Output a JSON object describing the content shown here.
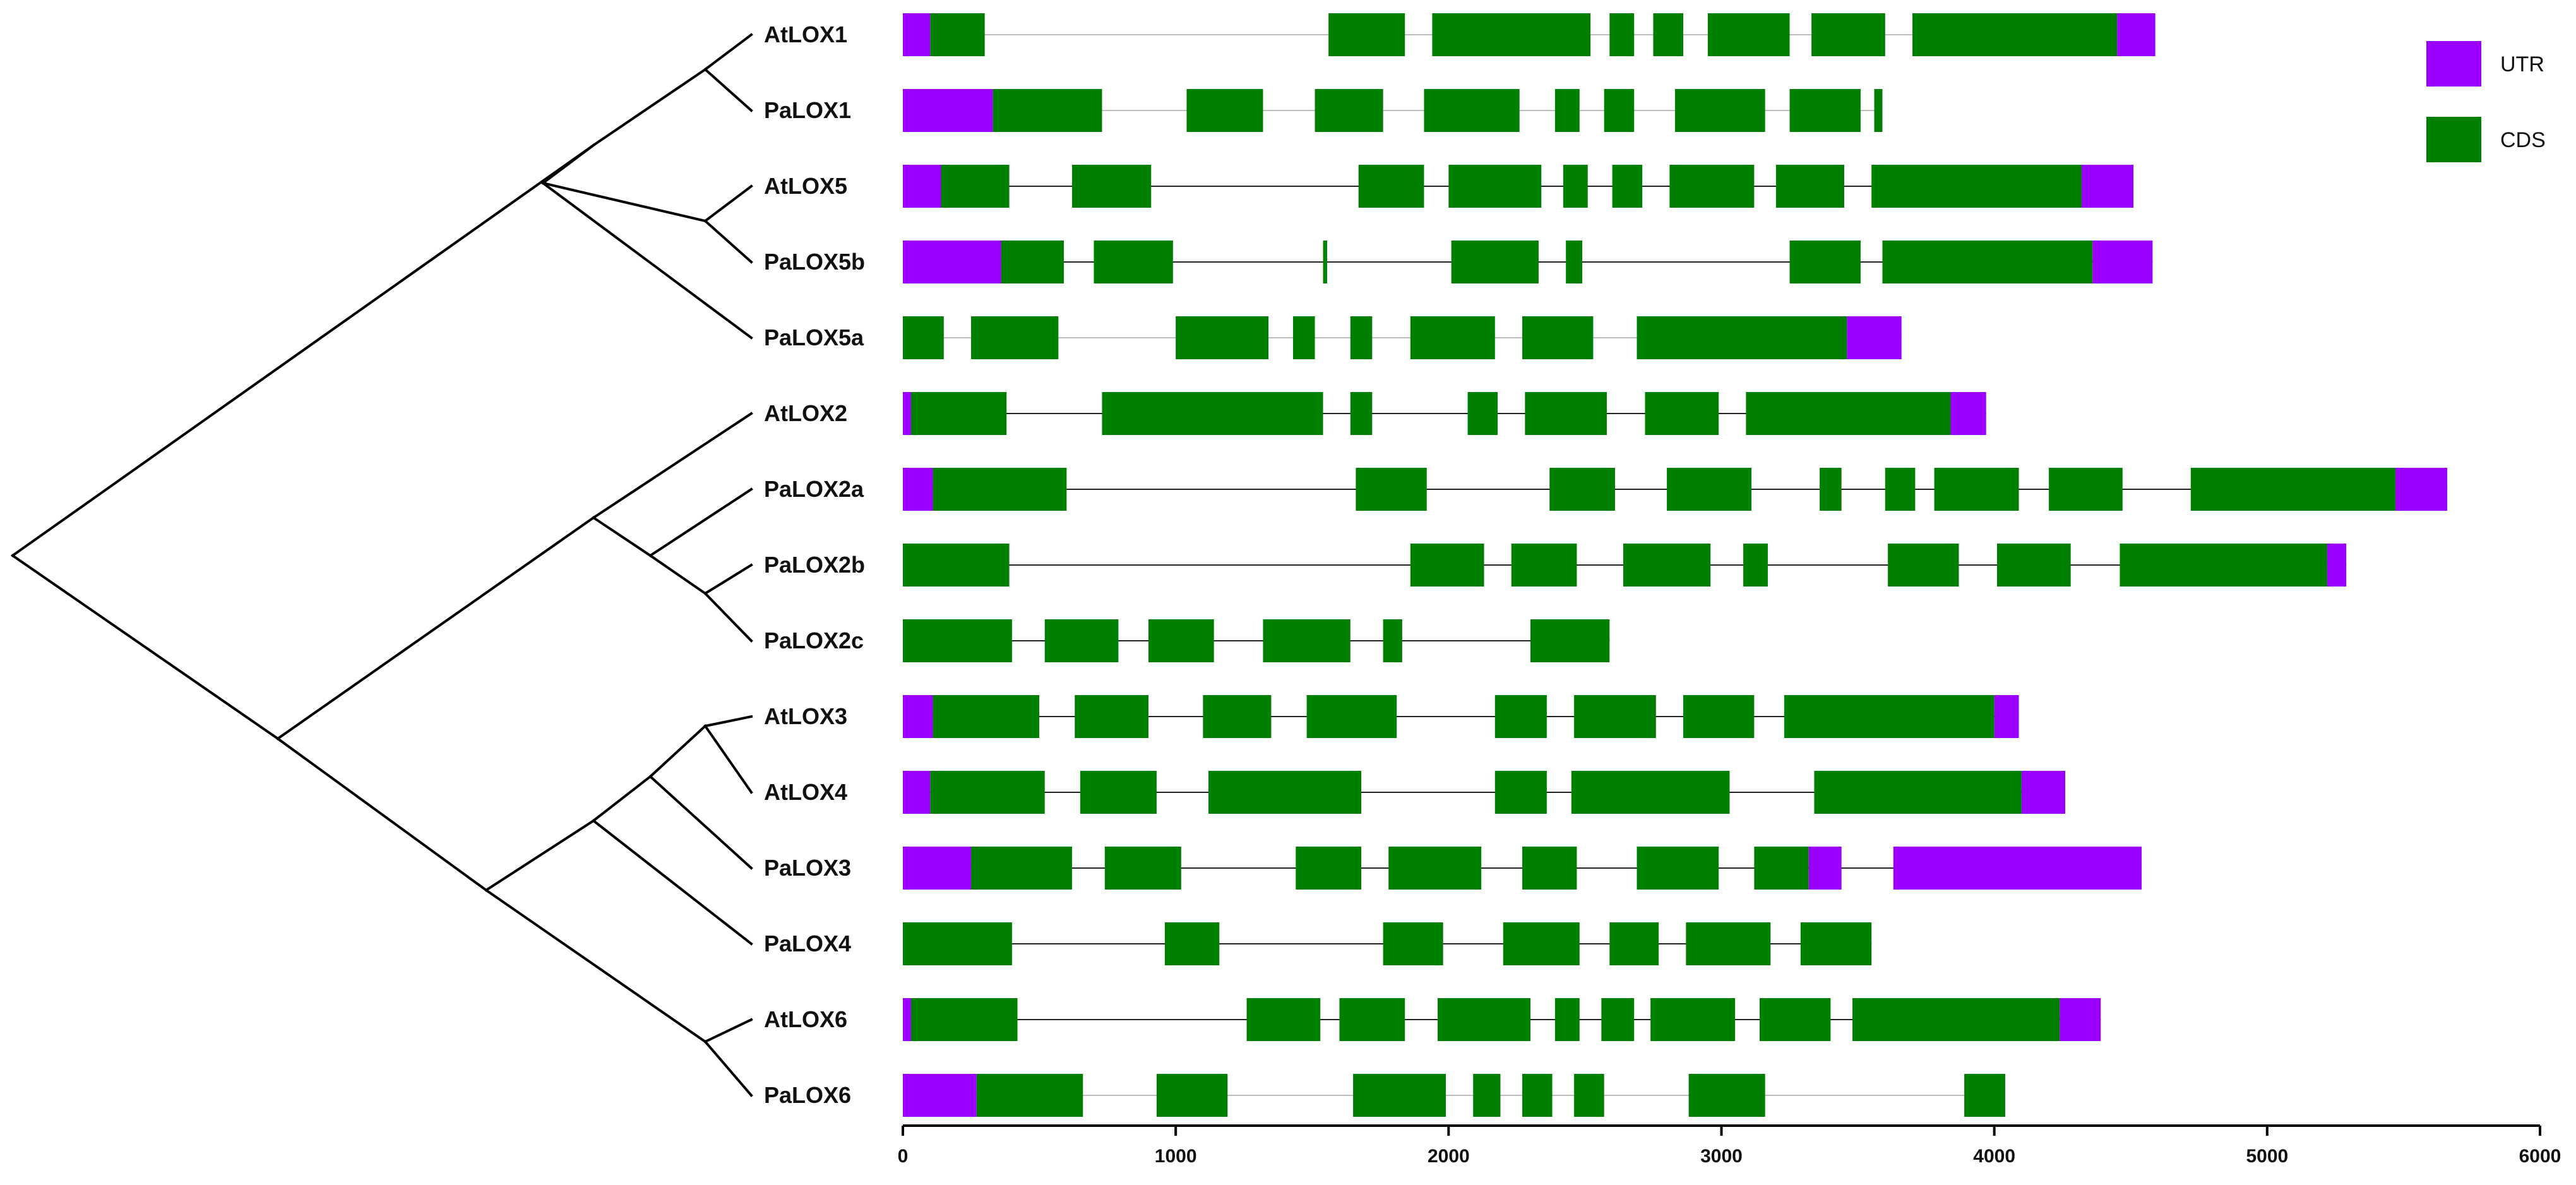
{
  "chart_data": {
    "type": "gene-structure",
    "x_axis": {
      "min": 0,
      "max": 6000,
      "ticks": [
        0,
        1000,
        2000,
        3000,
        4000,
        5000,
        6000
      ]
    },
    "legend": [
      {
        "key": "UTR",
        "label": "UTR",
        "color": "#9b00ff"
      },
      {
        "key": "CDS",
        "label": "CDS",
        "color": "#008000"
      }
    ],
    "genes": [
      {
        "name": "AtLOX1",
        "length": 4590,
        "intron_style": "light",
        "utr": [
          [
            0,
            100
          ],
          [
            4450,
            4590
          ]
        ],
        "cds": [
          [
            100,
            300
          ],
          [
            1560,
            1840
          ],
          [
            1940,
            2520
          ],
          [
            2590,
            2680
          ],
          [
            2750,
            2860
          ],
          [
            2950,
            3250
          ],
          [
            3330,
            3600
          ],
          [
            3700,
            4450
          ]
        ]
      },
      {
        "name": "PaLOX1",
        "length": 3590,
        "intron_style": "light",
        "utr": [
          [
            0,
            330
          ]
        ],
        "cds": [
          [
            330,
            730
          ],
          [
            1040,
            1320
          ],
          [
            1510,
            1760
          ],
          [
            1910,
            2260
          ],
          [
            2390,
            2480
          ],
          [
            2570,
            2680
          ],
          [
            2830,
            3160
          ],
          [
            3250,
            3510
          ],
          [
            3560,
            3590
          ]
        ]
      },
      {
        "name": "AtLOX5",
        "length": 4510,
        "intron_style": "dark",
        "utr": [
          [
            0,
            140
          ],
          [
            4320,
            4510
          ]
        ],
        "cds": [
          [
            140,
            390
          ],
          [
            620,
            910
          ],
          [
            1670,
            1910
          ],
          [
            2000,
            2340
          ],
          [
            2420,
            2510
          ],
          [
            2600,
            2710
          ],
          [
            2810,
            3120
          ],
          [
            3200,
            3450
          ],
          [
            3550,
            4320
          ]
        ]
      },
      {
        "name": "PaLOX5b",
        "length": 4580,
        "intron_style": "dark",
        "utr": [
          [
            0,
            360
          ],
          [
            4360,
            4580
          ]
        ],
        "cds": [
          [
            360,
            590
          ],
          [
            700,
            990
          ],
          [
            1540,
            1555
          ],
          [
            2010,
            2330
          ],
          [
            2430,
            2490
          ],
          [
            3250,
            3510
          ],
          [
            3590,
            4360
          ]
        ]
      },
      {
        "name": "PaLOX5a",
        "length": 3660,
        "intron_style": "light",
        "utr": [
          [
            3460,
            3660
          ]
        ],
        "cds": [
          [
            0,
            150
          ],
          [
            250,
            570
          ],
          [
            1000,
            1340
          ],
          [
            1430,
            1510
          ],
          [
            1640,
            1720
          ],
          [
            1860,
            2170
          ],
          [
            2270,
            2530
          ],
          [
            2690,
            3460
          ]
        ]
      },
      {
        "name": "AtLOX2",
        "length": 3970,
        "intron_style": "dark",
        "utr": [
          [
            0,
            30
          ],
          [
            3840,
            3970
          ]
        ],
        "cds": [
          [
            30,
            380
          ],
          [
            730,
            1540
          ],
          [
            1640,
            1720
          ],
          [
            2070,
            2180
          ],
          [
            2280,
            2580
          ],
          [
            2720,
            2990
          ],
          [
            3090,
            3840
          ]
        ]
      },
      {
        "name": "PaLOX2a",
        "length": 5660,
        "intron_style": "dark",
        "utr": [
          [
            0,
            110
          ],
          [
            5470,
            5660
          ]
        ],
        "cds": [
          [
            110,
            600
          ],
          [
            1660,
            1920
          ],
          [
            2370,
            2610
          ],
          [
            2800,
            3110
          ],
          [
            3360,
            3440
          ],
          [
            3600,
            3710
          ],
          [
            3780,
            4090
          ],
          [
            4200,
            4470
          ],
          [
            4720,
            5470
          ]
        ]
      },
      {
        "name": "PaLOX2b",
        "length": 5290,
        "intron_style": "dark",
        "utr": [
          [
            5220,
            5290
          ]
        ],
        "cds": [
          [
            0,
            390
          ],
          [
            1860,
            2130
          ],
          [
            2230,
            2470
          ],
          [
            2640,
            2960
          ],
          [
            3080,
            3170
          ],
          [
            3610,
            3870
          ],
          [
            4010,
            4280
          ],
          [
            4460,
            5220
          ]
        ]
      },
      {
        "name": "PaLOX2c",
        "length": 2590,
        "intron_style": "dark",
        "utr": [],
        "cds": [
          [
            0,
            400
          ],
          [
            520,
            790
          ],
          [
            900,
            1140
          ],
          [
            1320,
            1640
          ],
          [
            1760,
            1830
          ],
          [
            2300,
            2590
          ]
        ]
      },
      {
        "name": "AtLOX3",
        "length": 4090,
        "intron_style": "dark",
        "utr": [
          [
            0,
            110
          ],
          [
            4000,
            4090
          ]
        ],
        "cds": [
          [
            110,
            500
          ],
          [
            630,
            900
          ],
          [
            1100,
            1350
          ],
          [
            1480,
            1810
          ],
          [
            2170,
            2360
          ],
          [
            2460,
            2760
          ],
          [
            2860,
            3120
          ],
          [
            3230,
            4000
          ]
        ]
      },
      {
        "name": "AtLOX4",
        "length": 4260,
        "intron_style": "dark",
        "utr": [
          [
            0,
            100
          ],
          [
            4100,
            4260
          ]
        ],
        "cds": [
          [
            100,
            520
          ],
          [
            650,
            930
          ],
          [
            1120,
            1680
          ],
          [
            2170,
            2360
          ],
          [
            2450,
            3030
          ],
          [
            3340,
            4100
          ]
        ]
      },
      {
        "name": "PaLOX3",
        "length": 4540,
        "intron_style": "dark",
        "utr": [
          [
            0,
            250
          ],
          [
            3320,
            3440
          ],
          [
            3630,
            4540
          ]
        ],
        "cds": [
          [
            250,
            620
          ],
          [
            740,
            1020
          ],
          [
            1440,
            1680
          ],
          [
            1780,
            2120
          ],
          [
            2270,
            2470
          ],
          [
            2690,
            2990
          ],
          [
            3120,
            3320
          ]
        ]
      },
      {
        "name": "PaLOX4",
        "length": 3550,
        "intron_style": "dark",
        "utr": [],
        "cds": [
          [
            0,
            400
          ],
          [
            960,
            1160
          ],
          [
            1760,
            1980
          ],
          [
            2200,
            2480
          ],
          [
            2590,
            2770
          ],
          [
            2870,
            3180
          ],
          [
            3290,
            3550
          ]
        ]
      },
      {
        "name": "AtLOX6",
        "length": 4390,
        "intron_style": "dark",
        "utr": [
          [
            0,
            30
          ],
          [
            4240,
            4390
          ]
        ],
        "cds": [
          [
            30,
            420
          ],
          [
            1260,
            1530
          ],
          [
            1600,
            1840
          ],
          [
            1960,
            2300
          ],
          [
            2390,
            2480
          ],
          [
            2560,
            2680
          ],
          [
            2740,
            3050
          ],
          [
            3140,
            3400
          ],
          [
            3480,
            4240
          ]
        ]
      },
      {
        "name": "PaLOX6",
        "length": 4040,
        "intron_style": "light",
        "utr": [
          [
            0,
            270
          ]
        ],
        "cds": [
          [
            270,
            660
          ],
          [
            930,
            1190
          ],
          [
            1650,
            1990
          ],
          [
            2090,
            2190
          ],
          [
            2270,
            2380
          ],
          [
            2460,
            2570
          ],
          [
            2880,
            3160
          ],
          [
            3890,
            4040
          ]
        ]
      }
    ]
  }
}
